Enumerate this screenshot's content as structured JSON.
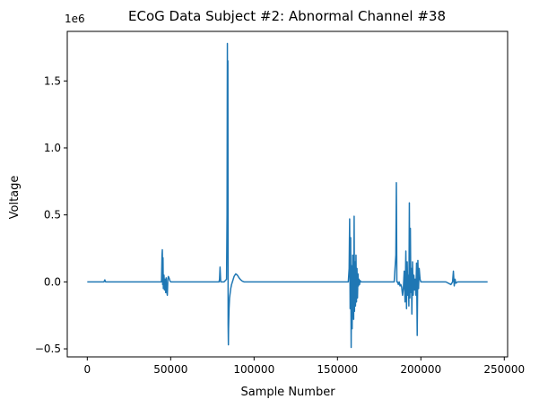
{
  "chart_data": {
    "type": "line",
    "title": "ECoG Data Subject #2: Abnormal Channel #38",
    "xlabel": "Sample Number",
    "ylabel": "Voltage",
    "y_offset_label": "1e6",
    "xlim": [
      -12000,
      252000
    ],
    "ylim": [
      -0.56,
      1.87
    ],
    "x_ticks": [
      0,
      50000,
      100000,
      150000,
      200000,
      250000
    ],
    "x_tick_labels": [
      "0",
      "50000",
      "100000",
      "150000",
      "200000",
      "250000"
    ],
    "y_ticks": [
      -0.5,
      0.0,
      0.5,
      1.0,
      1.5
    ],
    "y_tick_labels": [
      "−0.5",
      "0.0",
      "0.5",
      "1.0",
      "1.5"
    ],
    "grid": false,
    "series": [
      {
        "color": "#1f77b4",
        "x": [
          0,
          10000,
          10500,
          11000,
          30000,
          44500,
          44800,
          45000,
          45200,
          45400,
          45600,
          45800,
          46000,
          46300,
          46600,
          47000,
          47300,
          47600,
          48000,
          48300,
          48600,
          49000,
          49500,
          50000,
          51000,
          52000,
          60000,
          70000,
          78000,
          79000,
          79300,
          79600,
          80000,
          82000,
          83500,
          83800,
          84000,
          84150,
          84300,
          84450,
          84600,
          84700,
          84800,
          85000,
          85300,
          85700,
          86000,
          86500,
          87000,
          88000,
          89000,
          90000,
          91000,
          92000,
          93000,
          94000,
          96000,
          100000,
          110000,
          120000,
          130000,
          140000,
          150000,
          155000,
          156500,
          157000,
          157300,
          157600,
          157900,
          158200,
          158500,
          158800,
          159100,
          159400,
          159700,
          160000,
          160200,
          160500,
          160800,
          161100,
          161400,
          161700,
          162000,
          162300,
          162600,
          162900,
          163200,
          163600,
          164000,
          164500,
          165000,
          170000,
          175000,
          180000,
          184000,
          185000,
          185300,
          185600,
          186000,
          186500,
          187000,
          187500,
          188000,
          188500,
          189000,
          189500,
          190000,
          190500,
          191000,
          191400,
          191800,
          192200,
          192500,
          192800,
          193100,
          193400,
          193700,
          194000,
          194300,
          194600,
          195000,
          195400,
          195800,
          196200,
          196600,
          197000,
          197400,
          197800,
          198200,
          198600,
          199000,
          199500,
          200000,
          201000,
          202000,
          205000,
          210000,
          215000,
          218000,
          219000,
          219500,
          220000,
          220500,
          221000,
          222000,
          224000,
          230000,
          235000,
          240000
        ],
        "y": [
          0.0,
          0.0,
          0.015,
          0.0,
          0.0,
          0.0,
          0.2,
          0.24,
          -0.02,
          0.18,
          -0.05,
          -0.03,
          0.05,
          -0.06,
          0.02,
          -0.08,
          0.03,
          -0.07,
          -0.1,
          0.02,
          0.04,
          0.03,
          0.01,
          0.0,
          0.0,
          0.0,
          0.0,
          0.0,
          0.0,
          0.0,
          0.02,
          0.11,
          0.0,
          0.0,
          0.02,
          0.5,
          1.78,
          0.3,
          1.65,
          -0.32,
          -0.47,
          -0.35,
          -0.3,
          -0.2,
          -0.12,
          -0.08,
          -0.05,
          -0.02,
          0.0,
          0.04,
          0.06,
          0.05,
          0.03,
          0.015,
          0.005,
          0.0,
          0.0,
          0.0,
          0.0,
          0.0,
          0.0,
          0.0,
          0.0,
          0.0,
          0.0,
          0.1,
          0.47,
          -0.2,
          0.33,
          -0.49,
          0.12,
          -0.35,
          0.2,
          -0.12,
          -0.28,
          0.49,
          -0.22,
          0.15,
          -0.18,
          0.2,
          -0.15,
          0.1,
          -0.12,
          0.06,
          -0.03,
          0.02,
          -0.02,
          0.01,
          0.0,
          0.0,
          0.0,
          0.0,
          0.0,
          0.0,
          0.0,
          0.2,
          0.74,
          0.0,
          0.0,
          -0.02,
          0.0,
          -0.03,
          -0.02,
          -0.04,
          -0.1,
          -0.05,
          0.08,
          -0.15,
          0.23,
          -0.2,
          0.15,
          -0.1,
          0.05,
          -0.18,
          0.59,
          -0.12,
          0.4,
          -0.08,
          0.1,
          -0.24,
          0.15,
          -0.1,
          0.05,
          -0.06,
          0.02,
          -0.1,
          0.14,
          -0.4,
          0.16,
          -0.05,
          0.1,
          0.02,
          0.0,
          0.0,
          0.0,
          0.0,
          0.0,
          0.0,
          -0.02,
          0.0,
          0.08,
          -0.03,
          0.02,
          -0.01,
          0.0,
          0.0,
          0.0,
          0.0,
          0.0
        ]
      }
    ]
  }
}
